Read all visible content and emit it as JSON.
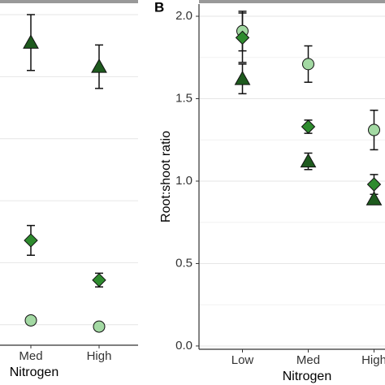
{
  "chart_data": [
    {
      "type": "point",
      "x_label": "Nitrogen",
      "categories": [
        "Med",
        "High"
      ],
      "ylim": [
        -0.33,
        5.17
      ],
      "grid_values": [
        0,
        1,
        2,
        3,
        4,
        5
      ],
      "series": [
        {
          "shape": "triangle",
          "color": "#1e5a1e",
          "values": [
            4.55,
            4.16
          ],
          "errors": [
            0.45,
            0.35
          ]
        },
        {
          "shape": "diamond",
          "color": "#2e8b2e",
          "values": [
            1.36,
            0.72
          ],
          "errors": [
            0.24,
            0.11
          ]
        },
        {
          "shape": "circle",
          "color": "#a3d9a3",
          "values": [
            0.07,
            -0.03
          ],
          "errors": [
            null,
            null
          ]
        }
      ]
    },
    {
      "type": "point",
      "title": "B",
      "x_label": "Nitrogen",
      "y_label": "Root:shoot ratio",
      "categories": [
        "Low",
        "Med",
        "High"
      ],
      "ylim": [
        -0.02,
        2.074
      ],
      "yticks": [
        {
          "value": 0,
          "label": "0.0"
        },
        {
          "value": 0.5,
          "label": "0.5"
        },
        {
          "value": 1,
          "label": "1.0"
        },
        {
          "value": 1.5,
          "label": "1.5"
        },
        {
          "value": 2,
          "label": "2.0"
        }
      ],
      "minor_grid": [
        0.25,
        0.75,
        1.25,
        1.75
      ],
      "series": [
        {
          "shape": "circle",
          "color": "#a3d9a3",
          "values": [
            1.91,
            1.71,
            1.31
          ],
          "errors": [
            0.12,
            0.11,
            0.12
          ]
        },
        {
          "shape": "diamond",
          "color": "#2e8b2e",
          "values": [
            1.87,
            1.33,
            0.98
          ],
          "errors": [
            0.15,
            0.04,
            0.06
          ]
        },
        {
          "shape": "triangle",
          "color": "#1e5a1e",
          "values": [
            1.62,
            1.12,
            0.89
          ],
          "errors": [
            0.09,
            0.05,
            0.03
          ]
        }
      ]
    }
  ]
}
